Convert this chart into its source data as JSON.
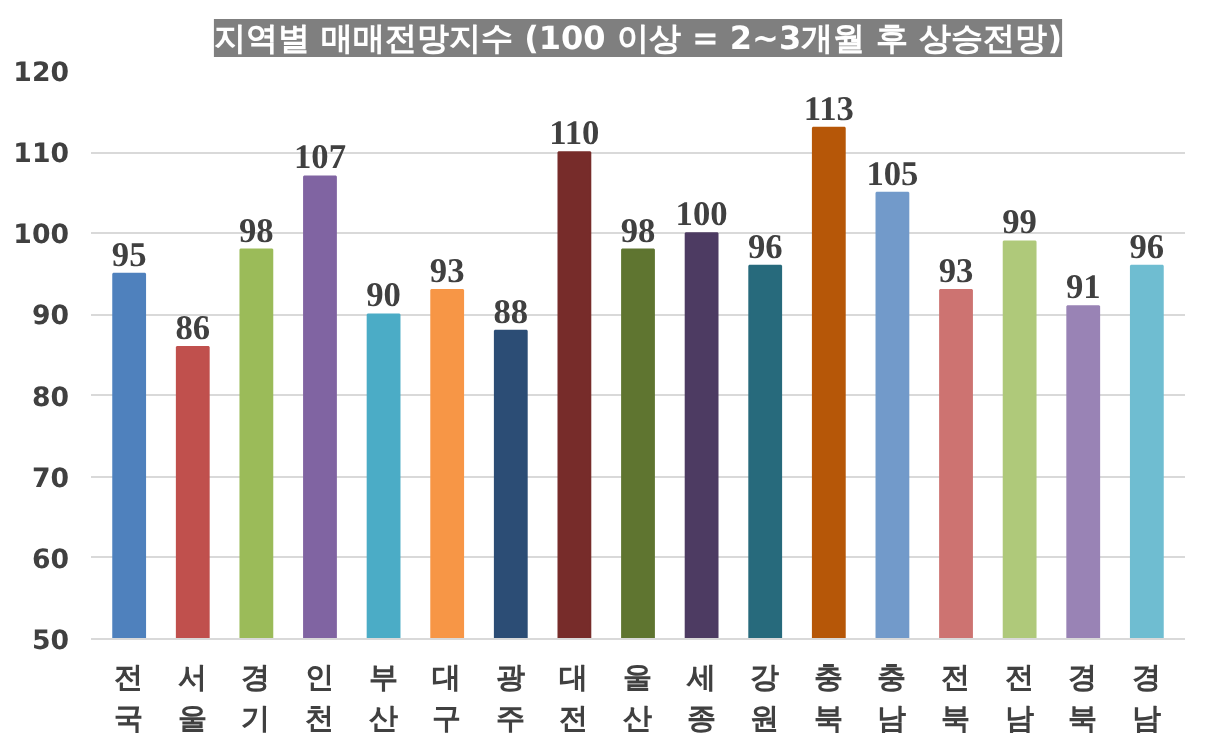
{
  "chart_data": {
    "type": "bar",
    "title": "지역별 매매전망지수 (100 이상 = 2~3개월 후 상승전망)",
    "categories": [
      "전국",
      "서울",
      "경기",
      "인천",
      "부산",
      "대구",
      "광주",
      "대전",
      "울산",
      "세종",
      "강원",
      "충북",
      "충남",
      "전북",
      "전남",
      "경북",
      "경남"
    ],
    "values": [
      95,
      86,
      98,
      107,
      90,
      93,
      88,
      110,
      98,
      100,
      96,
      113,
      105,
      93,
      99,
      91,
      96
    ],
    "colors": [
      "#4f81bd",
      "#c0504d",
      "#9bbb59",
      "#8064a2",
      "#4bacc6",
      "#f79646",
      "#2c4d75",
      "#772c2a",
      "#5f7530",
      "#4d3b62",
      "#276a7c",
      "#b65708",
      "#729aca",
      "#cd7371",
      "#afc97a",
      "#9983b5",
      "#6fbdd1"
    ],
    "ylim": [
      50,
      120
    ],
    "yticks": [
      50,
      60,
      70,
      80,
      90,
      100,
      110,
      120
    ],
    "grid": "y",
    "data_labels": true
  }
}
